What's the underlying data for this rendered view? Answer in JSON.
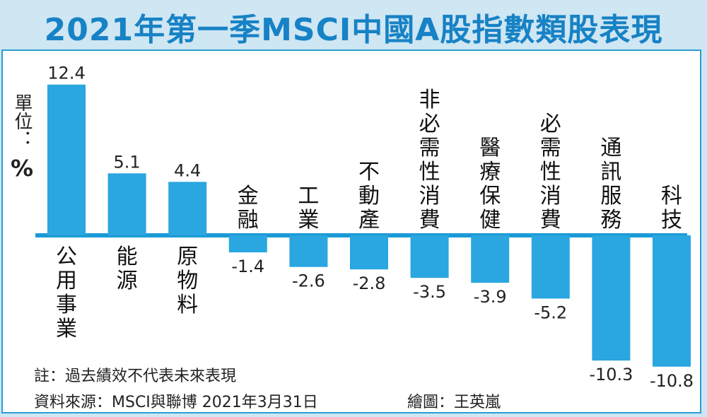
{
  "title": "2021年第一季MSCI中國A股指數類股表現",
  "unit": {
    "label": "單位：",
    "symbol": "%"
  },
  "chart_data": {
    "type": "bar",
    "title": "2021年第一季MSCI中國A股指數類股表現",
    "ylabel": "單位：%",
    "categories": [
      "公用事業",
      "能源",
      "原物料",
      "金融",
      "工業",
      "不動產",
      "非必需性消費",
      "醫療保健",
      "必需性消費",
      "通訊服務",
      "科技"
    ],
    "values": [
      12.4,
      5.1,
      4.4,
      -1.4,
      -2.6,
      -2.8,
      -3.5,
      -3.9,
      -5.2,
      -10.3,
      -10.8
    ],
    "value_labels": [
      "12.4",
      "5.1",
      "4.4",
      "-1.4",
      "-2.6",
      "-2.8",
      "-3.5",
      "-3.9",
      "-5.2",
      "-10.3",
      "-10.8"
    ],
    "ylim": [
      -11,
      13
    ],
    "grid": false,
    "legend": "none",
    "bar_color": "#2aa6e0",
    "axis_color": "#1a9ad6"
  },
  "notes": {
    "line1": "註：過去績效不代表未來表現",
    "line2": "資料來源：MSCI與聯博  2021年3月31日",
    "credit": "繪圖：王英嵐"
  },
  "colors": {
    "title": "#1782c5",
    "background": "#cfe6f3",
    "panel_border": "#2a9fd6"
  }
}
